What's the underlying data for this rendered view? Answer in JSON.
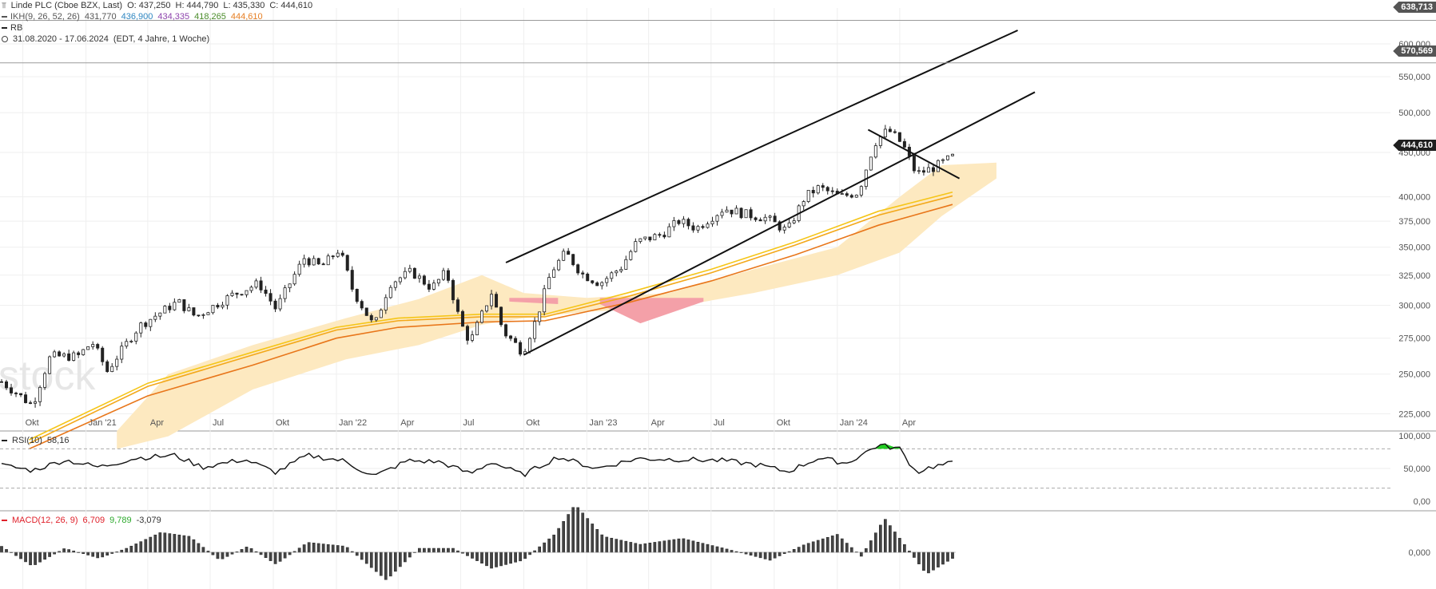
{
  "header": {
    "title": "Linde PLC (Cboe BZX, Last)",
    "open": "O: 437,250",
    "high": "H: 444,790",
    "low": "L: 435,330",
    "close": "C: 444,610",
    "ikh_label": "IKH(9, 26, 52, 26)",
    "ikh_values": [
      "431,770",
      "436,900",
      "434,335",
      "418,265",
      "444,610"
    ],
    "ikh_colors": [
      "#555555",
      "#2e86c1",
      "#8e44ad",
      "#4a8c2a",
      "#e67e22"
    ],
    "rb_label": "RB",
    "range": "31.08.2020 - 17.06.2024",
    "range_detail": "(EDT, 4 Jahre, 1 Woche)"
  },
  "badges": {
    "top": "638,713",
    "mid": "570,569",
    "last": "444,610"
  },
  "watermark": "stock",
  "rsi": {
    "label": "RSI(10)",
    "value": "58,16"
  },
  "macd": {
    "label": "MACD(12, 26, 9)",
    "v1": "6,709",
    "v2": "9,789",
    "v3": "-3,079"
  },
  "colors": {
    "cloud_bull": "#fde9c0",
    "cloud_bear": "#f4a0a8",
    "ma_fast": "#f5c518",
    "ma_mid": "#f3a81a",
    "ma_slow": "#e8761a",
    "rsi_over": "#22cc22",
    "badge_bg": "#555555",
    "last_badge_bg": "#1e1e1e"
  },
  "chart_data": {
    "type": "line",
    "title": "Linde PLC (Cboe BZX, Last)",
    "xlabel": "",
    "ylabel": "",
    "grid": true,
    "y_scale": "log",
    "ylim": [
      215,
      660
    ],
    "x_ticks": [
      "Okt",
      "Jan '21",
      "Apr",
      "Jul",
      "Okt",
      "Jan '22",
      "Apr",
      "Jul",
      "Okt",
      "Jan '23",
      "Apr",
      "Jul",
      "Okt",
      "Jan '24",
      "Apr"
    ],
    "y_ticks": [
      "225,000",
      "250,000",
      "275,000",
      "300,000",
      "325,000",
      "350,000",
      "375,000",
      "400,000",
      "450,000",
      "500,000",
      "550,000",
      "600,000"
    ],
    "y_tick_values": [
      225,
      250,
      275,
      300,
      325,
      350,
      375,
      400,
      450,
      500,
      550,
      600
    ],
    "hlines": [
      638.713,
      570.569
    ],
    "price_points": [
      {
        "d": "2020-08-31",
        "v": 245
      },
      {
        "d": "2020-10-15",
        "v": 230
      },
      {
        "d": "2020-11-10",
        "v": 262
      },
      {
        "d": "2020-12-20",
        "v": 262
      },
      {
        "d": "2021-01-10",
        "v": 272
      },
      {
        "d": "2021-02-01",
        "v": 252
      },
      {
        "d": "2021-03-20",
        "v": 284
      },
      {
        "d": "2021-05-15",
        "v": 303
      },
      {
        "d": "2021-06-10",
        "v": 291
      },
      {
        "d": "2021-08-01",
        "v": 308
      },
      {
        "d": "2021-09-10",
        "v": 318
      },
      {
        "d": "2021-10-05",
        "v": 297
      },
      {
        "d": "2021-11-15",
        "v": 340
      },
      {
        "d": "2021-12-10",
        "v": 332
      },
      {
        "d": "2022-01-05",
        "v": 348
      },
      {
        "d": "2022-01-25",
        "v": 312
      },
      {
        "d": "2022-02-25",
        "v": 283
      },
      {
        "d": "2022-03-20",
        "v": 318
      },
      {
        "d": "2022-04-20",
        "v": 328
      },
      {
        "d": "2022-05-20",
        "v": 314
      },
      {
        "d": "2022-06-10",
        "v": 328
      },
      {
        "d": "2022-06-30",
        "v": 287
      },
      {
        "d": "2022-07-15",
        "v": 272
      },
      {
        "d": "2022-08-15",
        "v": 310
      },
      {
        "d": "2022-09-01",
        "v": 280
      },
      {
        "d": "2022-09-30",
        "v": 265
      },
      {
        "d": "2022-10-20",
        "v": 290
      },
      {
        "d": "2022-11-10",
        "v": 328
      },
      {
        "d": "2022-12-01",
        "v": 345
      },
      {
        "d": "2022-12-25",
        "v": 326
      },
      {
        "d": "2023-01-20",
        "v": 318
      },
      {
        "d": "2023-02-20",
        "v": 332
      },
      {
        "d": "2023-03-15",
        "v": 355
      },
      {
        "d": "2023-04-20",
        "v": 362
      },
      {
        "d": "2023-05-15",
        "v": 375
      },
      {
        "d": "2023-06-10",
        "v": 368
      },
      {
        "d": "2023-07-20",
        "v": 388
      },
      {
        "d": "2023-08-20",
        "v": 382
      },
      {
        "d": "2023-09-20",
        "v": 378
      },
      {
        "d": "2023-10-20",
        "v": 365
      },
      {
        "d": "2023-11-15",
        "v": 400
      },
      {
        "d": "2023-12-05",
        "v": 410
      },
      {
        "d": "2024-01-05",
        "v": 400
      },
      {
        "d": "2024-02-01",
        "v": 405
      },
      {
        "d": "2024-02-25",
        "v": 462
      },
      {
        "d": "2024-03-15",
        "v": 478
      },
      {
        "d": "2024-04-05",
        "v": 460
      },
      {
        "d": "2024-04-25",
        "v": 425
      },
      {
        "d": "2024-05-20",
        "v": 432
      },
      {
        "d": "2024-06-17",
        "v": 444.61
      }
    ],
    "ma_series": [
      {
        "values": [
          {
            "d": "2020-10-10",
            "v": 210
          },
          {
            "d": "2021-04-01",
            "v": 244
          },
          {
            "d": "2021-09-01",
            "v": 265
          },
          {
            "d": "2022-01-01",
            "v": 283
          },
          {
            "d": "2022-04-01",
            "v": 290
          },
          {
            "d": "2022-08-01",
            "v": 293
          },
          {
            "d": "2022-11-01",
            "v": 293
          },
          {
            "d": "2023-03-01",
            "v": 310
          },
          {
            "d": "2023-07-01",
            "v": 330
          },
          {
            "d": "2023-11-01",
            "v": 355
          },
          {
            "d": "2024-03-01",
            "v": 385
          },
          {
            "d": "2024-06-17",
            "v": 405
          }
        ]
      },
      {
        "values": [
          {
            "d": "2020-10-10",
            "v": 208
          },
          {
            "d": "2021-04-01",
            "v": 242
          },
          {
            "d": "2021-09-01",
            "v": 263
          },
          {
            "d": "2022-01-01",
            "v": 281
          },
          {
            "d": "2022-04-01",
            "v": 288
          },
          {
            "d": "2022-08-01",
            "v": 291
          },
          {
            "d": "2022-11-01",
            "v": 291
          },
          {
            "d": "2023-03-01",
            "v": 307
          },
          {
            "d": "2023-07-01",
            "v": 327
          },
          {
            "d": "2023-11-01",
            "v": 352
          },
          {
            "d": "2024-03-01",
            "v": 381
          },
          {
            "d": "2024-06-17",
            "v": 401
          }
        ]
      },
      {
        "values": [
          {
            "d": "2020-10-10",
            "v": 205
          },
          {
            "d": "2021-04-01",
            "v": 236
          },
          {
            "d": "2021-09-01",
            "v": 256
          },
          {
            "d": "2022-01-01",
            "v": 275
          },
          {
            "d": "2022-04-01",
            "v": 283
          },
          {
            "d": "2022-08-01",
            "v": 287
          },
          {
            "d": "2022-11-01",
            "v": 288
          },
          {
            "d": "2023-03-01",
            "v": 302
          },
          {
            "d": "2023-07-01",
            "v": 320
          },
          {
            "d": "2023-11-01",
            "v": 343
          },
          {
            "d": "2024-03-01",
            "v": 371
          },
          {
            "d": "2024-06-17",
            "v": 392
          }
        ]
      }
    ],
    "cloud": {
      "upper": [
        {
          "d": "2021-02-15",
          "v": 215
        },
        {
          "d": "2021-05-01",
          "v": 250
        },
        {
          "d": "2021-09-01",
          "v": 270
        },
        {
          "d": "2022-01-15",
          "v": 290
        },
        {
          "d": "2022-05-01",
          "v": 305
        },
        {
          "d": "2022-08-01",
          "v": 325
        },
        {
          "d": "2022-10-01",
          "v": 310
        },
        {
          "d": "2023-01-01",
          "v": 306
        },
        {
          "d": "2023-05-01",
          "v": 310
        },
        {
          "d": "2023-09-01",
          "v": 330
        },
        {
          "d": "2024-01-01",
          "v": 350
        },
        {
          "d": "2024-04-01",
          "v": 400
        },
        {
          "d": "2024-06-01",
          "v": 435
        },
        {
          "d": "2024-08-20",
          "v": 438
        }
      ],
      "lower": [
        {
          "d": "2021-02-15",
          "v": 205
        },
        {
          "d": "2021-05-01",
          "v": 212
        },
        {
          "d": "2021-09-01",
          "v": 240
        },
        {
          "d": "2022-01-15",
          "v": 260
        },
        {
          "d": "2022-05-01",
          "v": 270
        },
        {
          "d": "2022-08-01",
          "v": 285
        },
        {
          "d": "2022-10-01",
          "v": 290
        },
        {
          "d": "2023-01-01",
          "v": 295
        },
        {
          "d": "2023-05-01",
          "v": 298
        },
        {
          "d": "2023-09-01",
          "v": 310
        },
        {
          "d": "2024-01-01",
          "v": 325
        },
        {
          "d": "2024-04-01",
          "v": 345
        },
        {
          "d": "2024-06-01",
          "v": 380
        },
        {
          "d": "2024-08-20",
          "v": 420
        }
      ],
      "bear_segments": [
        {
          "upper": [
            {
              "d": "2022-09-10",
              "v": 306
            },
            {
              "d": "2022-11-20",
              "v": 306
            }
          ],
          "lower": [
            {
              "d": "2022-09-10",
              "v": 303
            },
            {
              "d": "2022-11-20",
              "v": 301
            }
          ]
        },
        {
          "upper": [
            {
              "d": "2023-01-20",
              "v": 306
            },
            {
              "d": "2023-06-20",
              "v": 306
            }
          ],
          "lower": [
            {
              "d": "2023-01-20",
              "v": 301
            },
            {
              "d": "2023-03-20",
              "v": 286
            },
            {
              "d": "2023-06-20",
              "v": 303
            }
          ]
        }
      ]
    },
    "trendlines": [
      {
        "from": {
          "d": "2022-09-05",
          "v": 336
        },
        "to": {
          "d": "2024-09-20",
          "v": 622
        }
      },
      {
        "from": {
          "d": "2022-10-01",
          "v": 263
        },
        "to": {
          "d": "2024-10-15",
          "v": 528
        }
      },
      {
        "from": {
          "d": "2024-02-15",
          "v": 478
        },
        "to": {
          "d": "2024-06-27",
          "v": 420
        }
      }
    ],
    "rsi": {
      "ylim": [
        0,
        100
      ],
      "y_ticks": [
        "100,000",
        "50,000",
        "0,00"
      ],
      "y_tick_values": [
        100,
        50,
        0
      ],
      "bands": [
        80,
        20
      ],
      "points": [
        {
          "d": "2020-08-31",
          "v": 55
        },
        {
          "d": "2020-10-15",
          "v": 47
        },
        {
          "d": "2020-12-01",
          "v": 63
        },
        {
          "d": "2021-01-20",
          "v": 52
        },
        {
          "d": "2021-03-15",
          "v": 66
        },
        {
          "d": "2021-05-10",
          "v": 70
        },
        {
          "d": "2021-06-20",
          "v": 52
        },
        {
          "d": "2021-08-20",
          "v": 64
        },
        {
          "d": "2021-10-05",
          "v": 44
        },
        {
          "d": "2021-11-20",
          "v": 70
        },
        {
          "d": "2022-01-10",
          "v": 62
        },
        {
          "d": "2022-02-25",
          "v": 38
        },
        {
          "d": "2022-04-15",
          "v": 62
        },
        {
          "d": "2022-06-01",
          "v": 60
        },
        {
          "d": "2022-07-15",
          "v": 42
        },
        {
          "d": "2022-08-15",
          "v": 60
        },
        {
          "d": "2022-09-30",
          "v": 40
        },
        {
          "d": "2022-11-20",
          "v": 68
        },
        {
          "d": "2023-01-15",
          "v": 50
        },
        {
          "d": "2023-03-15",
          "v": 65
        },
        {
          "d": "2023-05-15",
          "v": 64
        },
        {
          "d": "2023-07-20",
          "v": 62
        },
        {
          "d": "2023-09-10",
          "v": 55
        },
        {
          "d": "2023-10-20",
          "v": 45
        },
        {
          "d": "2023-12-05",
          "v": 66
        },
        {
          "d": "2024-01-15",
          "v": 58
        },
        {
          "d": "2024-03-01",
          "v": 86
        },
        {
          "d": "2024-04-01",
          "v": 80
        },
        {
          "d": "2024-04-25",
          "v": 44
        },
        {
          "d": "2024-05-15",
          "v": 52
        },
        {
          "d": "2024-06-17",
          "v": 58.16
        }
      ]
    },
    "macd": {
      "y_ticks": [
        "0,000"
      ],
      "histogram": [
        {
          "d": "2020-08-31",
          "v": 3
        },
        {
          "d": "2020-10-15",
          "v": -7
        },
        {
          "d": "2020-12-01",
          "v": 2
        },
        {
          "d": "2021-01-20",
          "v": -3
        },
        {
          "d": "2021-03-01",
          "v": 2
        },
        {
          "d": "2021-04-20",
          "v": 10
        },
        {
          "d": "2021-06-01",
          "v": 8
        },
        {
          "d": "2021-07-15",
          "v": -4
        },
        {
          "d": "2021-08-25",
          "v": 3
        },
        {
          "d": "2021-10-05",
          "v": -6
        },
        {
          "d": "2021-11-20",
          "v": 5
        },
        {
          "d": "2022-01-15",
          "v": 3
        },
        {
          "d": "2022-03-15",
          "v": -14
        },
        {
          "d": "2022-05-01",
          "v": 2
        },
        {
          "d": "2022-06-20",
          "v": 2
        },
        {
          "d": "2022-08-15",
          "v": -8
        },
        {
          "d": "2022-09-30",
          "v": -4
        },
        {
          "d": "2022-11-15",
          "v": 9
        },
        {
          "d": "2022-12-15",
          "v": 24
        },
        {
          "d": "2023-01-25",
          "v": 8
        },
        {
          "d": "2023-03-20",
          "v": 4
        },
        {
          "d": "2023-05-20",
          "v": 7
        },
        {
          "d": "2023-07-20",
          "v": 2
        },
        {
          "d": "2023-09-25",
          "v": -4
        },
        {
          "d": "2023-11-15",
          "v": 4
        },
        {
          "d": "2024-01-01",
          "v": 9
        },
        {
          "d": "2024-02-05",
          "v": -2
        },
        {
          "d": "2024-03-10",
          "v": 17
        },
        {
          "d": "2024-04-10",
          "v": 3
        },
        {
          "d": "2024-05-10",
          "v": -11
        },
        {
          "d": "2024-06-17",
          "v": -3.079
        }
      ],
      "ylim": [
        -18,
        28
      ]
    }
  }
}
